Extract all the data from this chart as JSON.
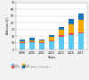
{
  "years": [
    "1999",
    "2000",
    "2001",
    "2010",
    "2013",
    "2016",
    "2017"
  ],
  "lead": [
    10,
    11,
    10,
    12,
    19,
    22,
    24
  ],
  "nimh": [
    1.5,
    1.5,
    1.5,
    1.5,
    2,
    2,
    2
  ],
  "li_ion": [
    1,
    1.5,
    1.5,
    5,
    8,
    14,
    18
  ],
  "other_total": [
    15,
    18,
    15,
    22,
    34,
    46,
    53
  ],
  "colors": {
    "lead": "#5bc8f0",
    "nimh": "#e05050",
    "li_ion": "#f5a800",
    "other": "#1a6fb5"
  },
  "ylim": [
    0,
    70
  ],
  "yticks": [
    0,
    10,
    20,
    30,
    40,
    50,
    60,
    70
  ],
  "ylabel": "Billions ($)",
  "xlabel": "Years",
  "legend_labels": [
    "Lead",
    "Ni(MH)",
    "Li-Ion",
    "Other (NiMh, ni-Ion Flow...)"
  ],
  "background_color": "#f2f2f2",
  "plot_bg": "#ffffff"
}
